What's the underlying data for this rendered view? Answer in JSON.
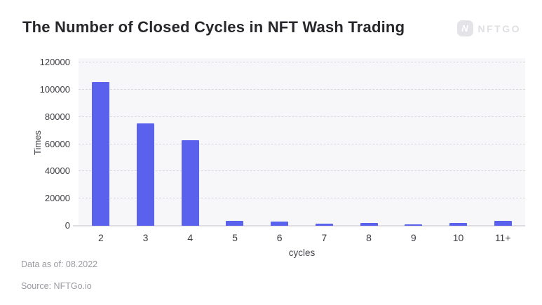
{
  "header": {
    "title": "The Number of Closed Cycles in NFT Wash Trading",
    "logo": {
      "icon_letter": "N",
      "text": "NFTGO"
    }
  },
  "chart_data": {
    "type": "bar",
    "title": "The Number of Closed Cycles in NFT Wash Trading",
    "categories": [
      "2",
      "3",
      "4",
      "5",
      "6",
      "7",
      "8",
      "9",
      "10",
      "11+"
    ],
    "values": [
      105600,
      75400,
      63000,
      3400,
      2900,
      1400,
      2300,
      900,
      2100,
      3500
    ],
    "xlabel": "cycles",
    "ylabel": "Times",
    "ylim": [
      0,
      120000
    ],
    "yticks": [
      0,
      20000,
      40000,
      60000,
      80000,
      100000,
      120000
    ],
    "grid": "horizontal-dashed",
    "legend": "none",
    "bar_color": "#5a61ec",
    "plot_background": "#f7f7fa"
  },
  "footer": {
    "data_as_of": "Data as of: 08.2022",
    "source": "Source: NFTGo.io"
  }
}
